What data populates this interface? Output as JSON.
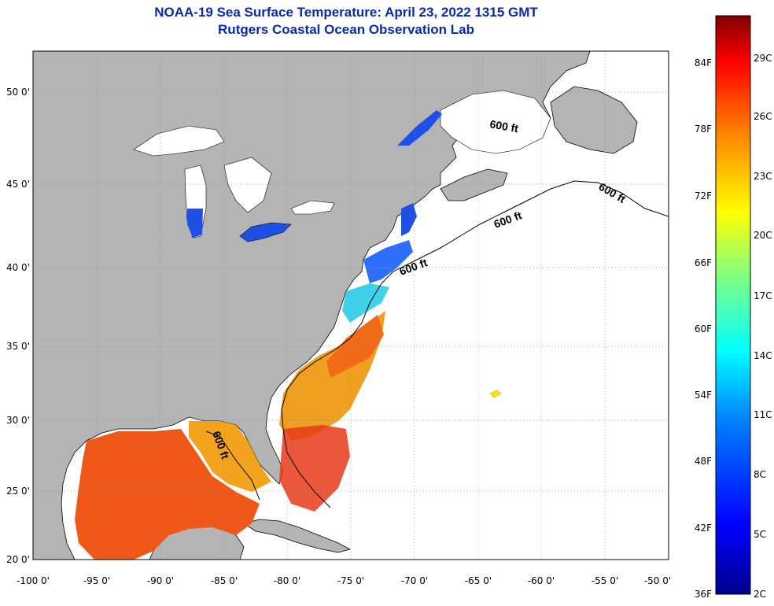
{
  "title": {
    "line1": "NOAA-19 Sea Surface Temperature:  April 23, 2022 1315 GMT",
    "line2": "Rutgers Coastal Ocean Observation Lab"
  },
  "map": {
    "lon_ticks": [
      "-100 0'",
      "-95 0'",
      "-90 0'",
      "-85 0'",
      "-80 0'",
      "-75 0'",
      "-70 0'",
      "-65 0'",
      "-60 0'",
      "-55 0'",
      "-50 0'"
    ],
    "lat_ticks": [
      "50 0'",
      "45 0'",
      "40 0'",
      "35 0'",
      "30 0'",
      "25 0'",
      "20 0'"
    ],
    "contour_labels": [
      "600 ft",
      "600 ft",
      "600 ft",
      "600 ft",
      "600 ft"
    ],
    "colors": {
      "land": "#b4b4b4",
      "ocean_no_data": "#ffffff",
      "water_cold": "#1e50e6",
      "water_warm": "#f07814"
    }
  },
  "colorbar": {
    "fahrenheit_labels": [
      "84F",
      "78F",
      "72F",
      "66F",
      "60F",
      "54F",
      "48F",
      "42F",
      "36F"
    ],
    "celsius_labels": [
      "29C",
      "26C",
      "23C",
      "20C",
      "17C",
      "14C",
      "11C",
      "8C",
      "5C",
      "2C"
    ],
    "colors": [
      "#00008c",
      "#0000ff",
      "#0080ff",
      "#00ffff",
      "#80ff80",
      "#ffff00",
      "#ff8000",
      "#ff0000",
      "#800000"
    ]
  }
}
